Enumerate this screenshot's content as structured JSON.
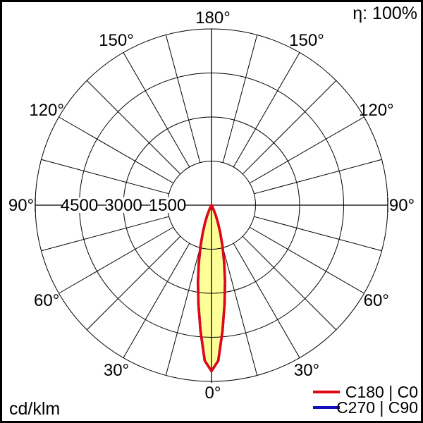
{
  "window": {
    "background": "#ffffff",
    "border_color": "#000000"
  },
  "header": {
    "efficiency": "η: 100%"
  },
  "footer": {
    "unit": "cd/klm"
  },
  "legend": {
    "items": [
      {
        "label": "C180 | C0",
        "color": "#e30613"
      },
      {
        "label": "C270 | C90",
        "color": "#1111bb"
      }
    ]
  },
  "chart_data": {
    "type": "line",
    "projection": "polar",
    "description": "Luminous intensity distribution polar diagram (photometric curve)",
    "unit": "cd/klm",
    "efficiency_label": "η: 100%",
    "angle_grid_step_deg": 15,
    "angle_label_step_deg": 30,
    "angle_labels": [
      "0°",
      "30°",
      "60°",
      "90°",
      "120°",
      "150°",
      "180°"
    ],
    "radial_ticks": [
      1500,
      3000,
      4500
    ],
    "radial_max": 6000,
    "grid_color": "#000000",
    "series": [
      {
        "name": "C180 | C0",
        "color": "#e30613",
        "fill": "#ffff99",
        "visible": true,
        "points": [
          [
            -30,
            0
          ],
          [
            -27.5,
            60
          ],
          [
            -25,
            180
          ],
          [
            -22.5,
            380
          ],
          [
            -20,
            650
          ],
          [
            -17.5,
            1000
          ],
          [
            -15,
            1450
          ],
          [
            -12.5,
            2000
          ],
          [
            -10,
            2650
          ],
          [
            -7.5,
            3400
          ],
          [
            -5,
            4300
          ],
          [
            -2.5,
            5300
          ],
          [
            0,
            5650
          ],
          [
            2.5,
            5300
          ],
          [
            5,
            4300
          ],
          [
            7.5,
            3400
          ],
          [
            10,
            2650
          ],
          [
            12.5,
            2000
          ],
          [
            15,
            1450
          ],
          [
            17.5,
            1000
          ],
          [
            20,
            650
          ],
          [
            22.5,
            380
          ],
          [
            25,
            180
          ],
          [
            27.5,
            60
          ],
          [
            30,
            0
          ]
        ]
      },
      {
        "name": "C270 | C90",
        "color": "#1111bb",
        "fill": null,
        "visible": false,
        "points": [
          [
            -30,
            0
          ],
          [
            -27.5,
            60
          ],
          [
            -25,
            180
          ],
          [
            -22.5,
            380
          ],
          [
            -20,
            650
          ],
          [
            -17.5,
            1000
          ],
          [
            -15,
            1450
          ],
          [
            -12.5,
            2000
          ],
          [
            -10,
            2650
          ],
          [
            -7.5,
            3400
          ],
          [
            -5,
            4300
          ],
          [
            -2.5,
            5300
          ],
          [
            0,
            5650
          ],
          [
            2.5,
            5300
          ],
          [
            5,
            4300
          ],
          [
            7.5,
            3400
          ],
          [
            10,
            2650
          ],
          [
            12.5,
            2000
          ],
          [
            15,
            1450
          ],
          [
            17.5,
            1000
          ],
          [
            20,
            650
          ],
          [
            22.5,
            380
          ],
          [
            25,
            180
          ],
          [
            27.5,
            60
          ],
          [
            30,
            0
          ]
        ]
      }
    ]
  }
}
